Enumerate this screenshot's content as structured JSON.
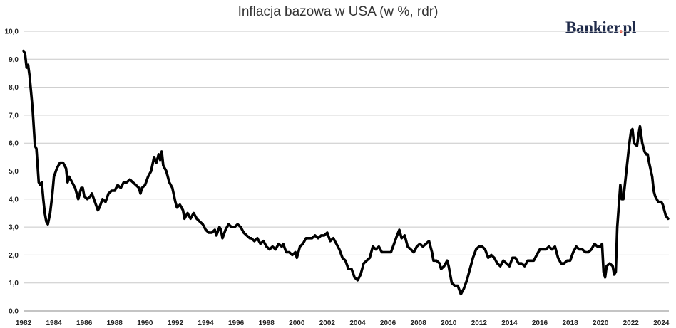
{
  "chart_data": {
    "type": "line",
    "title": "Inflacja bazowa w USA (w %, rdr)",
    "xlabel": "",
    "ylabel": "",
    "xlim": [
      1982.0,
      2024.5
    ],
    "ylim": [
      0,
      10
    ],
    "grid": true,
    "legend": "none",
    "line_color": "#000000",
    "grid_color": "#c8c8c8",
    "yticks": [
      "0,0",
      "1,0",
      "2,0",
      "3,0",
      "4,0",
      "5,0",
      "6,0",
      "7,0",
      "8,0",
      "9,0",
      "10,0"
    ],
    "xticks": [
      "1982",
      "1984",
      "1986",
      "1988",
      "1990",
      "1992",
      "1994",
      "1996",
      "1998",
      "2000",
      "2002",
      "2004",
      "2006",
      "2008",
      "2010",
      "2012",
      "2014",
      "2016",
      "2018",
      "2020",
      "2022",
      "2024"
    ],
    "series": [
      {
        "values": [
          [
            1982.0,
            9.3
          ],
          [
            1982.1,
            9.2
          ],
          [
            1982.2,
            8.7
          ],
          [
            1982.3,
            8.8
          ],
          [
            1982.4,
            8.4
          ],
          [
            1982.6,
            7.2
          ],
          [
            1982.75,
            5.9
          ],
          [
            1982.85,
            5.8
          ],
          [
            1983.0,
            4.6
          ],
          [
            1983.1,
            4.5
          ],
          [
            1983.2,
            4.6
          ],
          [
            1983.3,
            4.0
          ],
          [
            1983.4,
            3.5
          ],
          [
            1983.5,
            3.2
          ],
          [
            1983.6,
            3.1
          ],
          [
            1983.75,
            3.5
          ],
          [
            1983.9,
            4.2
          ],
          [
            1984.0,
            4.8
          ],
          [
            1984.2,
            5.1
          ],
          [
            1984.4,
            5.3
          ],
          [
            1984.6,
            5.3
          ],
          [
            1984.8,
            5.1
          ],
          [
            1984.9,
            4.6
          ],
          [
            1985.0,
            4.8
          ],
          [
            1985.2,
            4.6
          ],
          [
            1985.4,
            4.4
          ],
          [
            1985.6,
            4.0
          ],
          [
            1985.8,
            4.4
          ],
          [
            1985.9,
            4.4
          ],
          [
            1986.0,
            4.1
          ],
          [
            1986.2,
            4.0
          ],
          [
            1986.4,
            4.1
          ],
          [
            1986.5,
            4.2
          ],
          [
            1986.7,
            3.9
          ],
          [
            1986.9,
            3.6
          ],
          [
            1987.0,
            3.7
          ],
          [
            1987.2,
            4.0
          ],
          [
            1987.4,
            3.9
          ],
          [
            1987.6,
            4.2
          ],
          [
            1987.8,
            4.3
          ],
          [
            1988.0,
            4.3
          ],
          [
            1988.2,
            4.5
          ],
          [
            1988.4,
            4.4
          ],
          [
            1988.6,
            4.6
          ],
          [
            1988.8,
            4.6
          ],
          [
            1989.0,
            4.7
          ],
          [
            1989.2,
            4.6
          ],
          [
            1989.4,
            4.5
          ],
          [
            1989.6,
            4.4
          ],
          [
            1989.7,
            4.2
          ],
          [
            1989.8,
            4.4
          ],
          [
            1990.0,
            4.5
          ],
          [
            1990.2,
            4.8
          ],
          [
            1990.4,
            5.0
          ],
          [
            1990.6,
            5.5
          ],
          [
            1990.75,
            5.3
          ],
          [
            1990.9,
            5.6
          ],
          [
            1991.0,
            5.4
          ],
          [
            1991.1,
            5.7
          ],
          [
            1991.2,
            5.2
          ],
          [
            1991.4,
            5.0
          ],
          [
            1991.6,
            4.6
          ],
          [
            1991.8,
            4.4
          ],
          [
            1992.0,
            3.9
          ],
          [
            1992.1,
            3.7
          ],
          [
            1992.3,
            3.8
          ],
          [
            1992.5,
            3.6
          ],
          [
            1992.6,
            3.3
          ],
          [
            1992.8,
            3.5
          ],
          [
            1993.0,
            3.3
          ],
          [
            1993.2,
            3.5
          ],
          [
            1993.4,
            3.3
          ],
          [
            1993.6,
            3.2
          ],
          [
            1993.8,
            3.1
          ],
          [
            1994.0,
            2.9
          ],
          [
            1994.2,
            2.8
          ],
          [
            1994.4,
            2.8
          ],
          [
            1994.6,
            2.9
          ],
          [
            1994.7,
            2.7
          ],
          [
            1994.9,
            3.0
          ],
          [
            1995.0,
            2.9
          ],
          [
            1995.1,
            2.6
          ],
          [
            1995.3,
            2.9
          ],
          [
            1995.5,
            3.1
          ],
          [
            1995.7,
            3.0
          ],
          [
            1995.9,
            3.0
          ],
          [
            1996.1,
            3.1
          ],
          [
            1996.3,
            3.0
          ],
          [
            1996.5,
            2.8
          ],
          [
            1996.7,
            2.7
          ],
          [
            1996.9,
            2.6
          ],
          [
            1997.0,
            2.6
          ],
          [
            1997.2,
            2.5
          ],
          [
            1997.4,
            2.6
          ],
          [
            1997.6,
            2.4
          ],
          [
            1997.8,
            2.5
          ],
          [
            1998.0,
            2.3
          ],
          [
            1998.2,
            2.2
          ],
          [
            1998.4,
            2.3
          ],
          [
            1998.6,
            2.2
          ],
          [
            1998.8,
            2.4
          ],
          [
            1999.0,
            2.3
          ],
          [
            1999.1,
            2.4
          ],
          [
            1999.3,
            2.1
          ],
          [
            1999.5,
            2.1
          ],
          [
            1999.7,
            2.0
          ],
          [
            1999.9,
            2.1
          ],
          [
            2000.0,
            1.9
          ],
          [
            2000.2,
            2.3
          ],
          [
            2000.4,
            2.4
          ],
          [
            2000.6,
            2.6
          ],
          [
            2000.8,
            2.6
          ],
          [
            2001.0,
            2.6
          ],
          [
            2001.2,
            2.7
          ],
          [
            2001.4,
            2.6
          ],
          [
            2001.6,
            2.7
          ],
          [
            2001.8,
            2.7
          ],
          [
            2002.0,
            2.8
          ],
          [
            2002.2,
            2.5
          ],
          [
            2002.4,
            2.6
          ],
          [
            2002.6,
            2.4
          ],
          [
            2002.8,
            2.2
          ],
          [
            2003.0,
            1.9
          ],
          [
            2003.2,
            1.8
          ],
          [
            2003.4,
            1.5
          ],
          [
            2003.6,
            1.5
          ],
          [
            2003.8,
            1.2
          ],
          [
            2004.0,
            1.1
          ],
          [
            2004.2,
            1.3
          ],
          [
            2004.4,
            1.7
          ],
          [
            2004.6,
            1.8
          ],
          [
            2004.8,
            1.9
          ],
          [
            2005.0,
            2.3
          ],
          [
            2005.2,
            2.2
          ],
          [
            2005.4,
            2.3
          ],
          [
            2005.6,
            2.1
          ],
          [
            2005.8,
            2.1
          ],
          [
            2006.0,
            2.1
          ],
          [
            2006.2,
            2.1
          ],
          [
            2006.4,
            2.4
          ],
          [
            2006.6,
            2.7
          ],
          [
            2006.75,
            2.9
          ],
          [
            2006.9,
            2.6
          ],
          [
            2007.1,
            2.7
          ],
          [
            2007.3,
            2.3
          ],
          [
            2007.5,
            2.2
          ],
          [
            2007.7,
            2.1
          ],
          [
            2007.9,
            2.3
          ],
          [
            2008.1,
            2.4
          ],
          [
            2008.3,
            2.3
          ],
          [
            2008.5,
            2.4
          ],
          [
            2008.7,
            2.5
          ],
          [
            2008.9,
            2.1
          ],
          [
            2009.0,
            1.8
          ],
          [
            2009.2,
            1.8
          ],
          [
            2009.4,
            1.7
          ],
          [
            2009.5,
            1.5
          ],
          [
            2009.7,
            1.6
          ],
          [
            2009.9,
            1.8
          ],
          [
            2010.0,
            1.6
          ],
          [
            2010.2,
            1.0
          ],
          [
            2010.4,
            0.9
          ],
          [
            2010.6,
            0.9
          ],
          [
            2010.8,
            0.6
          ],
          [
            2011.0,
            0.8
          ],
          [
            2011.2,
            1.1
          ],
          [
            2011.4,
            1.5
          ],
          [
            2011.6,
            1.9
          ],
          [
            2011.8,
            2.2
          ],
          [
            2012.0,
            2.3
          ],
          [
            2012.2,
            2.3
          ],
          [
            2012.4,
            2.2
          ],
          [
            2012.6,
            1.9
          ],
          [
            2012.8,
            2.0
          ],
          [
            2013.0,
            1.9
          ],
          [
            2013.2,
            1.7
          ],
          [
            2013.4,
            1.6
          ],
          [
            2013.6,
            1.8
          ],
          [
            2013.8,
            1.7
          ],
          [
            2014.0,
            1.6
          ],
          [
            2014.2,
            1.9
          ],
          [
            2014.4,
            1.9
          ],
          [
            2014.6,
            1.7
          ],
          [
            2014.8,
            1.7
          ],
          [
            2015.0,
            1.6
          ],
          [
            2015.2,
            1.8
          ],
          [
            2015.4,
            1.8
          ],
          [
            2015.6,
            1.8
          ],
          [
            2015.8,
            2.0
          ],
          [
            2016.0,
            2.2
          ],
          [
            2016.2,
            2.2
          ],
          [
            2016.4,
            2.2
          ],
          [
            2016.6,
            2.3
          ],
          [
            2016.8,
            2.2
          ],
          [
            2017.0,
            2.3
          ],
          [
            2017.2,
            1.9
          ],
          [
            2017.4,
            1.7
          ],
          [
            2017.6,
            1.7
          ],
          [
            2017.8,
            1.8
          ],
          [
            2018.0,
            1.8
          ],
          [
            2018.2,
            2.1
          ],
          [
            2018.4,
            2.3
          ],
          [
            2018.6,
            2.2
          ],
          [
            2018.8,
            2.2
          ],
          [
            2019.0,
            2.1
          ],
          [
            2019.2,
            2.1
          ],
          [
            2019.4,
            2.2
          ],
          [
            2019.6,
            2.4
          ],
          [
            2019.8,
            2.3
          ],
          [
            2020.0,
            2.3
          ],
          [
            2020.1,
            2.4
          ],
          [
            2020.2,
            1.4
          ],
          [
            2020.3,
            1.2
          ],
          [
            2020.4,
            1.6
          ],
          [
            2020.6,
            1.7
          ],
          [
            2020.8,
            1.6
          ],
          [
            2020.9,
            1.3
          ],
          [
            2021.0,
            1.4
          ],
          [
            2021.1,
            3.0
          ],
          [
            2021.3,
            4.5
          ],
          [
            2021.4,
            4.0
          ],
          [
            2021.5,
            4.0
          ],
          [
            2021.7,
            5.0
          ],
          [
            2021.9,
            6.0
          ],
          [
            2022.0,
            6.4
          ],
          [
            2022.1,
            6.5
          ],
          [
            2022.2,
            6.0
          ],
          [
            2022.4,
            5.9
          ],
          [
            2022.5,
            6.3
          ],
          [
            2022.6,
            6.6
          ],
          [
            2022.75,
            6.0
          ],
          [
            2022.9,
            5.7
          ],
          [
            2023.0,
            5.6
          ],
          [
            2023.1,
            5.6
          ],
          [
            2023.2,
            5.3
          ],
          [
            2023.4,
            4.8
          ],
          [
            2023.5,
            4.3
          ],
          [
            2023.6,
            4.1
          ],
          [
            2023.8,
            3.9
          ],
          [
            2024.0,
            3.9
          ],
          [
            2024.1,
            3.8
          ],
          [
            2024.2,
            3.6
          ],
          [
            2024.3,
            3.4
          ],
          [
            2024.45,
            3.3
          ]
        ]
      }
    ]
  },
  "header": {
    "title": "Inflacja bazowa w USA (w %, rdr)"
  },
  "brand": {
    "name": "Bankier",
    "dot": ".",
    "tld": "pl"
  }
}
